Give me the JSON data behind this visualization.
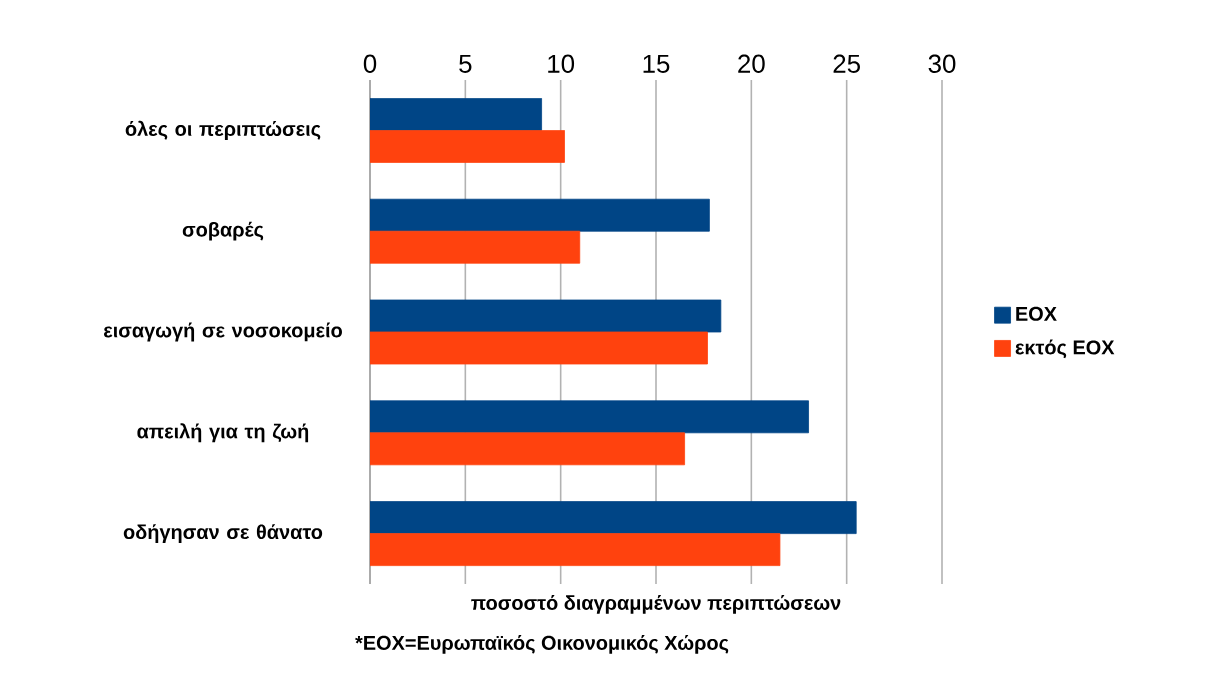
{
  "chart_data": {
    "type": "bar",
    "orientation": "horizontal",
    "categories": [
      "όλες οι περιπτώσεις",
      "σοβαρές",
      "εισαγωγή σε νοσοκομείο",
      "απειλή για τη ζωή",
      "οδήγησαν σε θάνατο"
    ],
    "series": [
      {
        "name": "ΕΟΧ",
        "color": "#004586",
        "values": [
          9.0,
          17.8,
          18.4,
          23.0,
          25.5
        ]
      },
      {
        "name": "εκτός ΕΟΧ",
        "color": "#ff420e",
        "values": [
          10.2,
          11.0,
          17.7,
          16.5,
          21.5
        ]
      }
    ],
    "xlim": [
      0,
      30
    ],
    "xticks": [
      0,
      5,
      10,
      15,
      20,
      25,
      30
    ],
    "xlabel": "ποσοστό διαγραμμένων περιπτώσεων",
    "annotations": [
      "*ΕΟΧ=Ευρωπαϊκός Οικονομικός Χώρος"
    ],
    "grid": "x",
    "legend": "right"
  }
}
